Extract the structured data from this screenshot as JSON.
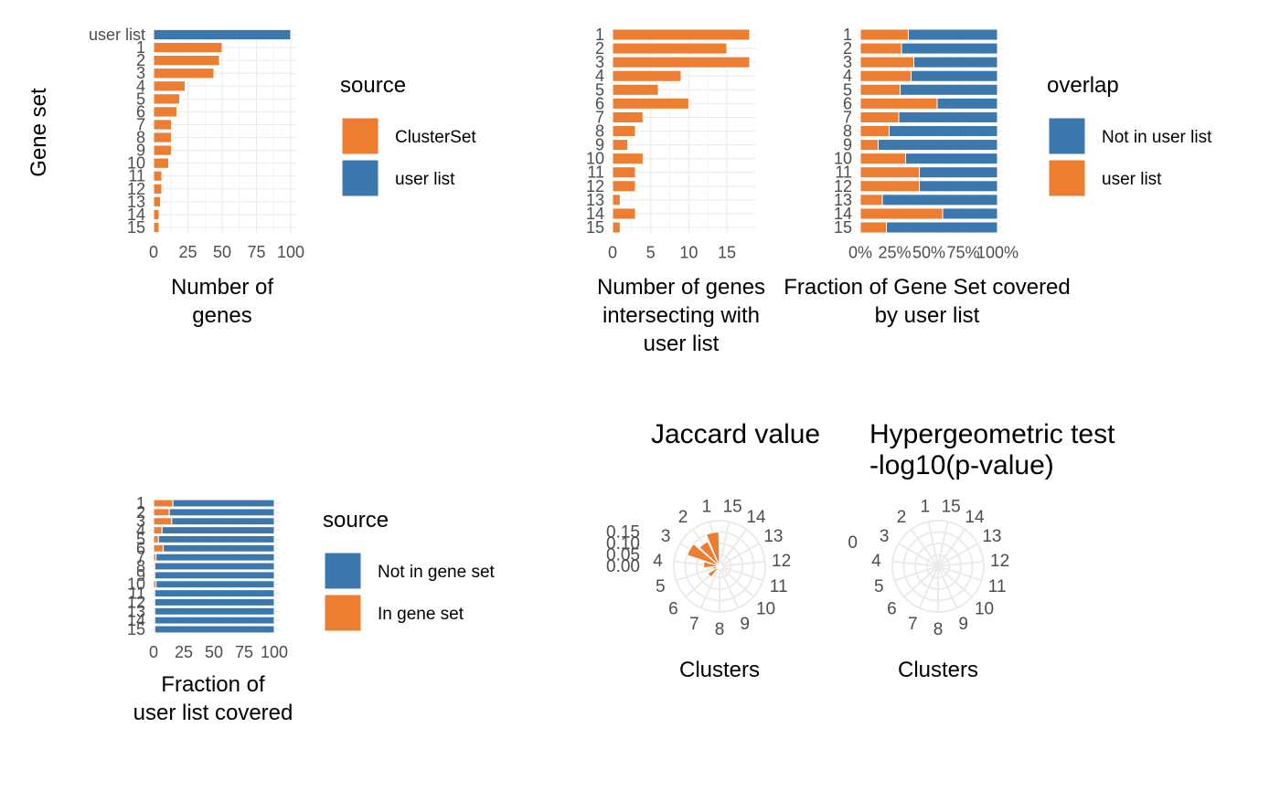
{
  "colors": {
    "orange": "#ED7D31",
    "blue": "#3C78AE",
    "grid": "#EBEBEB",
    "tick_text": "#4D4D4D"
  },
  "chart_data": [
    {
      "id": "genes",
      "type": "bar",
      "orientation": "horizontal",
      "ylabel": "Gene set",
      "xlabel": "Number of genes",
      "xlim": [
        0,
        100
      ],
      "x_ticks": [
        "0",
        "25",
        "50",
        "75",
        "100"
      ],
      "categories": [
        "user list",
        "1",
        "2",
        "3",
        "4",
        "5",
        "6",
        "7",
        "8",
        "9",
        "10",
        "11",
        "12",
        "13",
        "14",
        "15"
      ],
      "values": [
        100,
        50,
        48,
        44,
        23,
        19,
        17,
        13,
        13,
        13,
        11,
        6,
        6,
        5,
        4,
        4
      ],
      "bar_source": [
        "user list",
        "ClusterSet",
        "ClusterSet",
        "ClusterSet",
        "ClusterSet",
        "ClusterSet",
        "ClusterSet",
        "ClusterSet",
        "ClusterSet",
        "ClusterSet",
        "ClusterSet",
        "ClusterSet",
        "ClusterSet",
        "ClusterSet",
        "ClusterSet",
        "ClusterSet"
      ],
      "legend": {
        "title": "source",
        "items": [
          {
            "label": "ClusterSet",
            "color": "#ED7D31"
          },
          {
            "label": "user list",
            "color": "#3C78AE"
          }
        ]
      }
    },
    {
      "id": "intersect",
      "type": "bar",
      "orientation": "horizontal",
      "xlabel": "Number of genes intersecting with user list",
      "xlim": [
        0,
        18
      ],
      "x_ticks": [
        "0",
        "5",
        "10",
        "15"
      ],
      "categories": [
        "1",
        "2",
        "3",
        "4",
        "5",
        "6",
        "7",
        "8",
        "9",
        "10",
        "11",
        "12",
        "13",
        "14",
        "15"
      ],
      "values": [
        18,
        15,
        18,
        9,
        6,
        10,
        4,
        3,
        2,
        4,
        3,
        3,
        1,
        3,
        1
      ]
    },
    {
      "id": "overlap",
      "type": "bar",
      "stacked": true,
      "orientation": "horizontal",
      "xlabel": "Fraction of Gene Set covered by user list",
      "xlim": [
        0,
        1
      ],
      "x_ticks": [
        "0%",
        "25%",
        "50%",
        "75%",
        "100%"
      ],
      "categories": [
        "1",
        "2",
        "3",
        "4",
        "5",
        "6",
        "7",
        "8",
        "9",
        "10",
        "11",
        "12",
        "13",
        "14",
        "15"
      ],
      "series": [
        {
          "name": "user list",
          "values": [
            0.35,
            0.3,
            0.39,
            0.37,
            0.29,
            0.56,
            0.28,
            0.21,
            0.13,
            0.33,
            0.43,
            0.43,
            0.16,
            0.6,
            0.19
          ]
        },
        {
          "name": "Not in user list",
          "values": [
            0.65,
            0.7,
            0.61,
            0.63,
            0.71,
            0.44,
            0.72,
            0.79,
            0.87,
            0.67,
            0.57,
            0.57,
            0.84,
            0.4,
            0.81
          ]
        }
      ],
      "legend": {
        "title": "overlap",
        "items": [
          {
            "label": "Not in user list",
            "color": "#3C78AE"
          },
          {
            "label": "user list",
            "color": "#ED7D31"
          }
        ]
      }
    },
    {
      "id": "coverage",
      "type": "bar",
      "stacked": true,
      "orientation": "horizontal",
      "xlabel": "Fraction of user list covered",
      "xlim": [
        0,
        100
      ],
      "x_ticks": [
        "0",
        "25",
        "50",
        "75",
        "100"
      ],
      "categories": [
        "1",
        "2",
        "3",
        "4",
        "5",
        "6",
        "7",
        "8",
        "9",
        "10",
        "11",
        "12",
        "13",
        "14",
        "15"
      ],
      "series": [
        {
          "name": "In gene set",
          "values": [
            16,
            13,
            15,
            7,
            4,
            8,
            2,
            1,
            1,
            2,
            1,
            1,
            1,
            1,
            1
          ]
        },
        {
          "name": "Not in gene set",
          "values": [
            84,
            87,
            85,
            93,
            96,
            92,
            98,
            99,
            99,
            98,
            99,
            99,
            99,
            99,
            99
          ]
        }
      ],
      "legend": {
        "title": "source",
        "items": [
          {
            "label": "Not in gene set",
            "color": "#3C78AE"
          },
          {
            "label": "In gene set",
            "color": "#ED7D31"
          }
        ]
      }
    },
    {
      "id": "jaccard",
      "type": "bar",
      "coord": "polar",
      "title": "Jaccard value",
      "xlabel": "Clusters",
      "categories": [
        "1",
        "2",
        "3",
        "4",
        "5",
        "6",
        "7",
        "8",
        "9",
        "10",
        "11",
        "12",
        "13",
        "14",
        "15"
      ],
      "values": [
        0.15,
        0.12,
        0.15,
        0.07,
        0.03,
        0.06,
        0.02,
        0.01,
        0.01,
        0.01,
        0.01,
        0.01,
        0.01,
        0.01,
        0.01
      ],
      "r_ticks": [
        "0.00",
        "0.05",
        "0.10",
        "0.15"
      ],
      "r_tick_values": [
        0,
        0.05,
        0.1,
        0.15
      ],
      "rlim": [
        0,
        0.2
      ]
    },
    {
      "id": "hypergeo",
      "type": "bar",
      "coord": "polar",
      "title": "Hypergeometric test\n-log10(p-value)",
      "xlabel": "Clusters",
      "categories": [
        "1",
        "2",
        "3",
        "4",
        "5",
        "6",
        "7",
        "8",
        "9",
        "10",
        "11",
        "12",
        "13",
        "14",
        "15"
      ],
      "values": [
        0,
        0,
        0,
        0,
        0,
        0,
        0,
        0,
        0,
        0,
        0,
        0,
        0,
        0,
        0
      ],
      "r_ticks": [
        "0"
      ],
      "r_tick_values": [
        0
      ],
      "rlim": [
        0,
        1
      ]
    }
  ]
}
